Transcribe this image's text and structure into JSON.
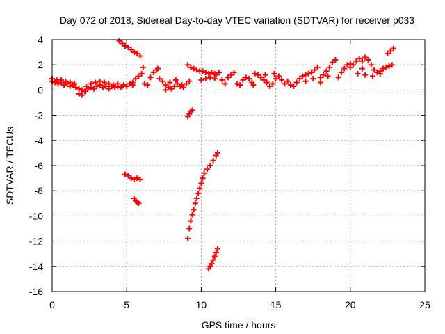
{
  "chart_data": {
    "type": "scatter",
    "title": "Day 072 of 2018, Sidereal Day-to-day VTEC variation (SDTVAR) for receiver p033",
    "xlabel": "GPS time / hours",
    "ylabel": "SDTVAR / TECUs",
    "xlim": [
      0,
      25
    ],
    "ylim": [
      -16,
      4
    ],
    "xticks": [
      0,
      5,
      10,
      15,
      20,
      25
    ],
    "yticks": [
      4,
      2,
      0,
      -2,
      -4,
      -6,
      -8,
      -10,
      -12,
      -14,
      -16
    ],
    "grid": true,
    "marker": "+",
    "color": "#ff0000",
    "series": [
      {
        "name": "main-band-a",
        "points": [
          [
            0.0,
            0.7
          ],
          [
            0.2,
            0.6
          ],
          [
            0.4,
            0.5
          ],
          [
            0.6,
            0.6
          ],
          [
            0.8,
            0.4
          ],
          [
            1.0,
            0.5
          ],
          [
            1.2,
            0.3
          ],
          [
            1.4,
            0.4
          ],
          [
            1.6,
            0.2
          ],
          [
            1.8,
            0.1
          ],
          [
            2.0,
            0.0
          ],
          [
            2.2,
            -0.1
          ],
          [
            2.4,
            0.1
          ],
          [
            2.6,
            0.2
          ],
          [
            2.8,
            0.1
          ],
          [
            3.0,
            0.3
          ],
          [
            3.2,
            0.4
          ],
          [
            3.4,
            0.2
          ],
          [
            3.6,
            0.3
          ],
          [
            3.8,
            0.1
          ],
          [
            4.0,
            0.3
          ],
          [
            4.2,
            0.2
          ],
          [
            4.4,
            0.3
          ],
          [
            4.6,
            0.2
          ],
          [
            4.8,
            0.4
          ],
          [
            5.0,
            0.3
          ],
          [
            5.2,
            0.5
          ],
          [
            5.4,
            0.4
          ]
        ]
      },
      {
        "name": "main-band-b",
        "points": [
          [
            0.0,
            0.9
          ],
          [
            0.3,
            0.8
          ],
          [
            0.6,
            0.8
          ],
          [
            0.9,
            0.7
          ],
          [
            1.2,
            0.6
          ],
          [
            1.5,
            0.5
          ],
          [
            1.8,
            -0.3
          ],
          [
            2.0,
            -0.4
          ],
          [
            2.3,
            0.3
          ],
          [
            2.6,
            0.5
          ],
          [
            2.9,
            0.6
          ],
          [
            3.2,
            0.7
          ],
          [
            3.5,
            0.6
          ],
          [
            3.8,
            0.5
          ],
          [
            4.1,
            0.4
          ],
          [
            4.4,
            0.5
          ],
          [
            4.7,
            0.3
          ]
        ]
      },
      {
        "name": "segment-5-6",
        "points": [
          [
            5.4,
            0.6
          ],
          [
            5.6,
            0.9
          ],
          [
            5.8,
            1.1
          ],
          [
            6.0,
            1.3
          ],
          [
            6.2,
            0.5
          ],
          [
            6.4,
            0.4
          ],
          [
            6.6,
            1.0
          ],
          [
            6.8,
            1.4
          ],
          [
            7.0,
            1.6
          ],
          [
            7.1,
            1.7
          ]
        ]
      },
      {
        "name": "segment-7-9",
        "points": [
          [
            7.2,
            0.9
          ],
          [
            7.4,
            0.7
          ],
          [
            7.6,
            0.4
          ],
          [
            7.8,
            0.2
          ],
          [
            8.0,
            0.1
          ],
          [
            8.2,
            0.3
          ],
          [
            8.4,
            0.5
          ],
          [
            8.6,
            0.3
          ],
          [
            8.8,
            0.2
          ],
          [
            9.0,
            0.5
          ],
          [
            9.2,
            0.7
          ],
          [
            7.6,
            0.0
          ],
          [
            7.9,
            0.6
          ],
          [
            8.3,
            0.8
          ],
          [
            8.7,
            0.4
          ]
        ]
      },
      {
        "name": "segment-9-11",
        "points": [
          [
            9.1,
            2.0
          ],
          [
            9.3,
            1.8
          ],
          [
            9.5,
            1.7
          ],
          [
            9.7,
            1.6
          ],
          [
            9.9,
            1.5
          ],
          [
            10.1,
            1.5
          ],
          [
            10.3,
            1.4
          ],
          [
            10.5,
            1.3
          ],
          [
            10.7,
            1.4
          ],
          [
            10.9,
            1.3
          ],
          [
            10.0,
            0.8
          ],
          [
            10.3,
            0.9
          ],
          [
            10.6,
            1.0
          ],
          [
            10.9,
            0.9
          ]
        ]
      },
      {
        "name": "segment-11-15",
        "points": [
          [
            11.0,
            1.2
          ],
          [
            11.2,
            1.4
          ],
          [
            11.4,
            0.8
          ],
          [
            11.6,
            0.5
          ],
          [
            11.8,
            1.0
          ],
          [
            12.0,
            1.2
          ],
          [
            12.2,
            1.4
          ],
          [
            12.4,
            0.5
          ],
          [
            12.6,
            0.4
          ],
          [
            12.8,
            0.8
          ],
          [
            13.0,
            1.0
          ],
          [
            13.2,
            0.9
          ],
          [
            13.4,
            0.6
          ],
          [
            13.6,
            1.3
          ],
          [
            13.8,
            1.2
          ],
          [
            14.0,
            1.0
          ],
          [
            14.2,
            0.8
          ],
          [
            14.4,
            0.6
          ],
          [
            14.6,
            0.3
          ],
          [
            14.8,
            0.5
          ],
          [
            15.0,
            0.9
          ],
          [
            15.2,
            1.1
          ],
          [
            15.4,
            0.8
          ],
          [
            13.5,
            0.4
          ],
          [
            14.3,
            1.2
          ],
          [
            14.9,
            1.3
          ]
        ]
      },
      {
        "name": "segment-15-19",
        "points": [
          [
            15.6,
            0.5
          ],
          [
            15.8,
            0.7
          ],
          [
            16.0,
            0.4
          ],
          [
            16.2,
            0.3
          ],
          [
            16.4,
            0.6
          ],
          [
            16.6,
            0.9
          ],
          [
            16.8,
            1.1
          ],
          [
            17.0,
            1.2
          ],
          [
            17.2,
            1.3
          ],
          [
            17.4,
            1.4
          ],
          [
            17.6,
            1.6
          ],
          [
            17.8,
            1.8
          ],
          [
            18.0,
            1.0
          ],
          [
            18.2,
            1.2
          ],
          [
            18.4,
            1.5
          ],
          [
            18.6,
            1.8
          ],
          [
            18.8,
            2.2
          ],
          [
            19.0,
            2.4
          ],
          [
            17.0,
            0.7
          ],
          [
            17.5,
            0.9
          ],
          [
            18.0,
            0.6
          ],
          [
            18.5,
            1.1
          ]
        ]
      },
      {
        "name": "segment-19-23",
        "points": [
          [
            19.2,
            1.0
          ],
          [
            19.4,
            1.4
          ],
          [
            19.6,
            1.7
          ],
          [
            19.8,
            2.0
          ],
          [
            20.0,
            2.1
          ],
          [
            20.2,
            2.0
          ],
          [
            20.4,
            2.3
          ],
          [
            20.6,
            2.5
          ],
          [
            20.8,
            2.3
          ],
          [
            21.0,
            2.6
          ],
          [
            21.2,
            2.4
          ],
          [
            21.4,
            2.0
          ],
          [
            21.6,
            1.6
          ],
          [
            21.8,
            1.4
          ],
          [
            22.0,
            1.5
          ],
          [
            22.2,
            1.7
          ],
          [
            22.4,
            1.8
          ],
          [
            22.6,
            1.9
          ],
          [
            22.8,
            2.0
          ],
          [
            20.5,
            1.3
          ],
          [
            21.0,
            1.2
          ],
          [
            21.5,
            1.1
          ],
          [
            22.0,
            1.3
          ],
          [
            22.5,
            2.9
          ],
          [
            22.7,
            3.1
          ],
          [
            22.9,
            3.3
          ],
          [
            20.0,
            1.8
          ],
          [
            20.8,
            1.7
          ]
        ]
      },
      {
        "name": "descending-4-6",
        "points": [
          [
            4.5,
            3.9
          ],
          [
            4.7,
            3.7
          ],
          [
            4.9,
            3.5
          ],
          [
            5.1,
            3.4
          ],
          [
            5.3,
            3.2
          ],
          [
            5.5,
            3.0
          ],
          [
            5.7,
            2.9
          ],
          [
            5.9,
            2.7
          ],
          [
            6.1,
            1.8
          ]
        ]
      },
      {
        "name": "dip-9",
        "points": [
          [
            9.1,
            -2.1
          ],
          [
            9.2,
            -1.9
          ],
          [
            9.3,
            -1.7
          ],
          [
            9.4,
            -1.6
          ]
        ]
      },
      {
        "name": "cluster-minus7",
        "points": [
          [
            4.9,
            -6.7
          ],
          [
            5.1,
            -6.8
          ],
          [
            5.3,
            -7.0
          ],
          [
            5.5,
            -7.1
          ],
          [
            5.7,
            -7.0
          ],
          [
            5.9,
            -7.1
          ],
          [
            5.5,
            -8.6
          ],
          [
            5.6,
            -8.8
          ],
          [
            5.7,
            -8.9
          ],
          [
            5.8,
            -9.0
          ]
        ]
      },
      {
        "name": "steep-9-11",
        "points": [
          [
            9.1,
            -11.8
          ],
          [
            9.2,
            -11.0
          ],
          [
            9.3,
            -10.4
          ],
          [
            9.4,
            -9.9
          ],
          [
            9.5,
            -9.5
          ],
          [
            9.6,
            -9.0
          ],
          [
            9.7,
            -8.6
          ],
          [
            9.8,
            -8.2
          ],
          [
            9.9,
            -7.8
          ],
          [
            10.0,
            -7.4
          ],
          [
            10.1,
            -7.0
          ],
          [
            10.2,
            -6.6
          ],
          [
            10.4,
            -6.3
          ],
          [
            10.6,
            -6.0
          ],
          [
            10.8,
            -5.6
          ],
          [
            11.0,
            -5.2
          ],
          [
            11.1,
            -5.0
          ]
        ]
      },
      {
        "name": "steep-10-11-low",
        "points": [
          [
            10.5,
            -14.2
          ],
          [
            10.6,
            -14.0
          ],
          [
            10.7,
            -13.8
          ],
          [
            10.8,
            -13.5
          ],
          [
            10.9,
            -13.2
          ],
          [
            11.0,
            -12.9
          ],
          [
            11.1,
            -12.6
          ]
        ]
      }
    ]
  }
}
